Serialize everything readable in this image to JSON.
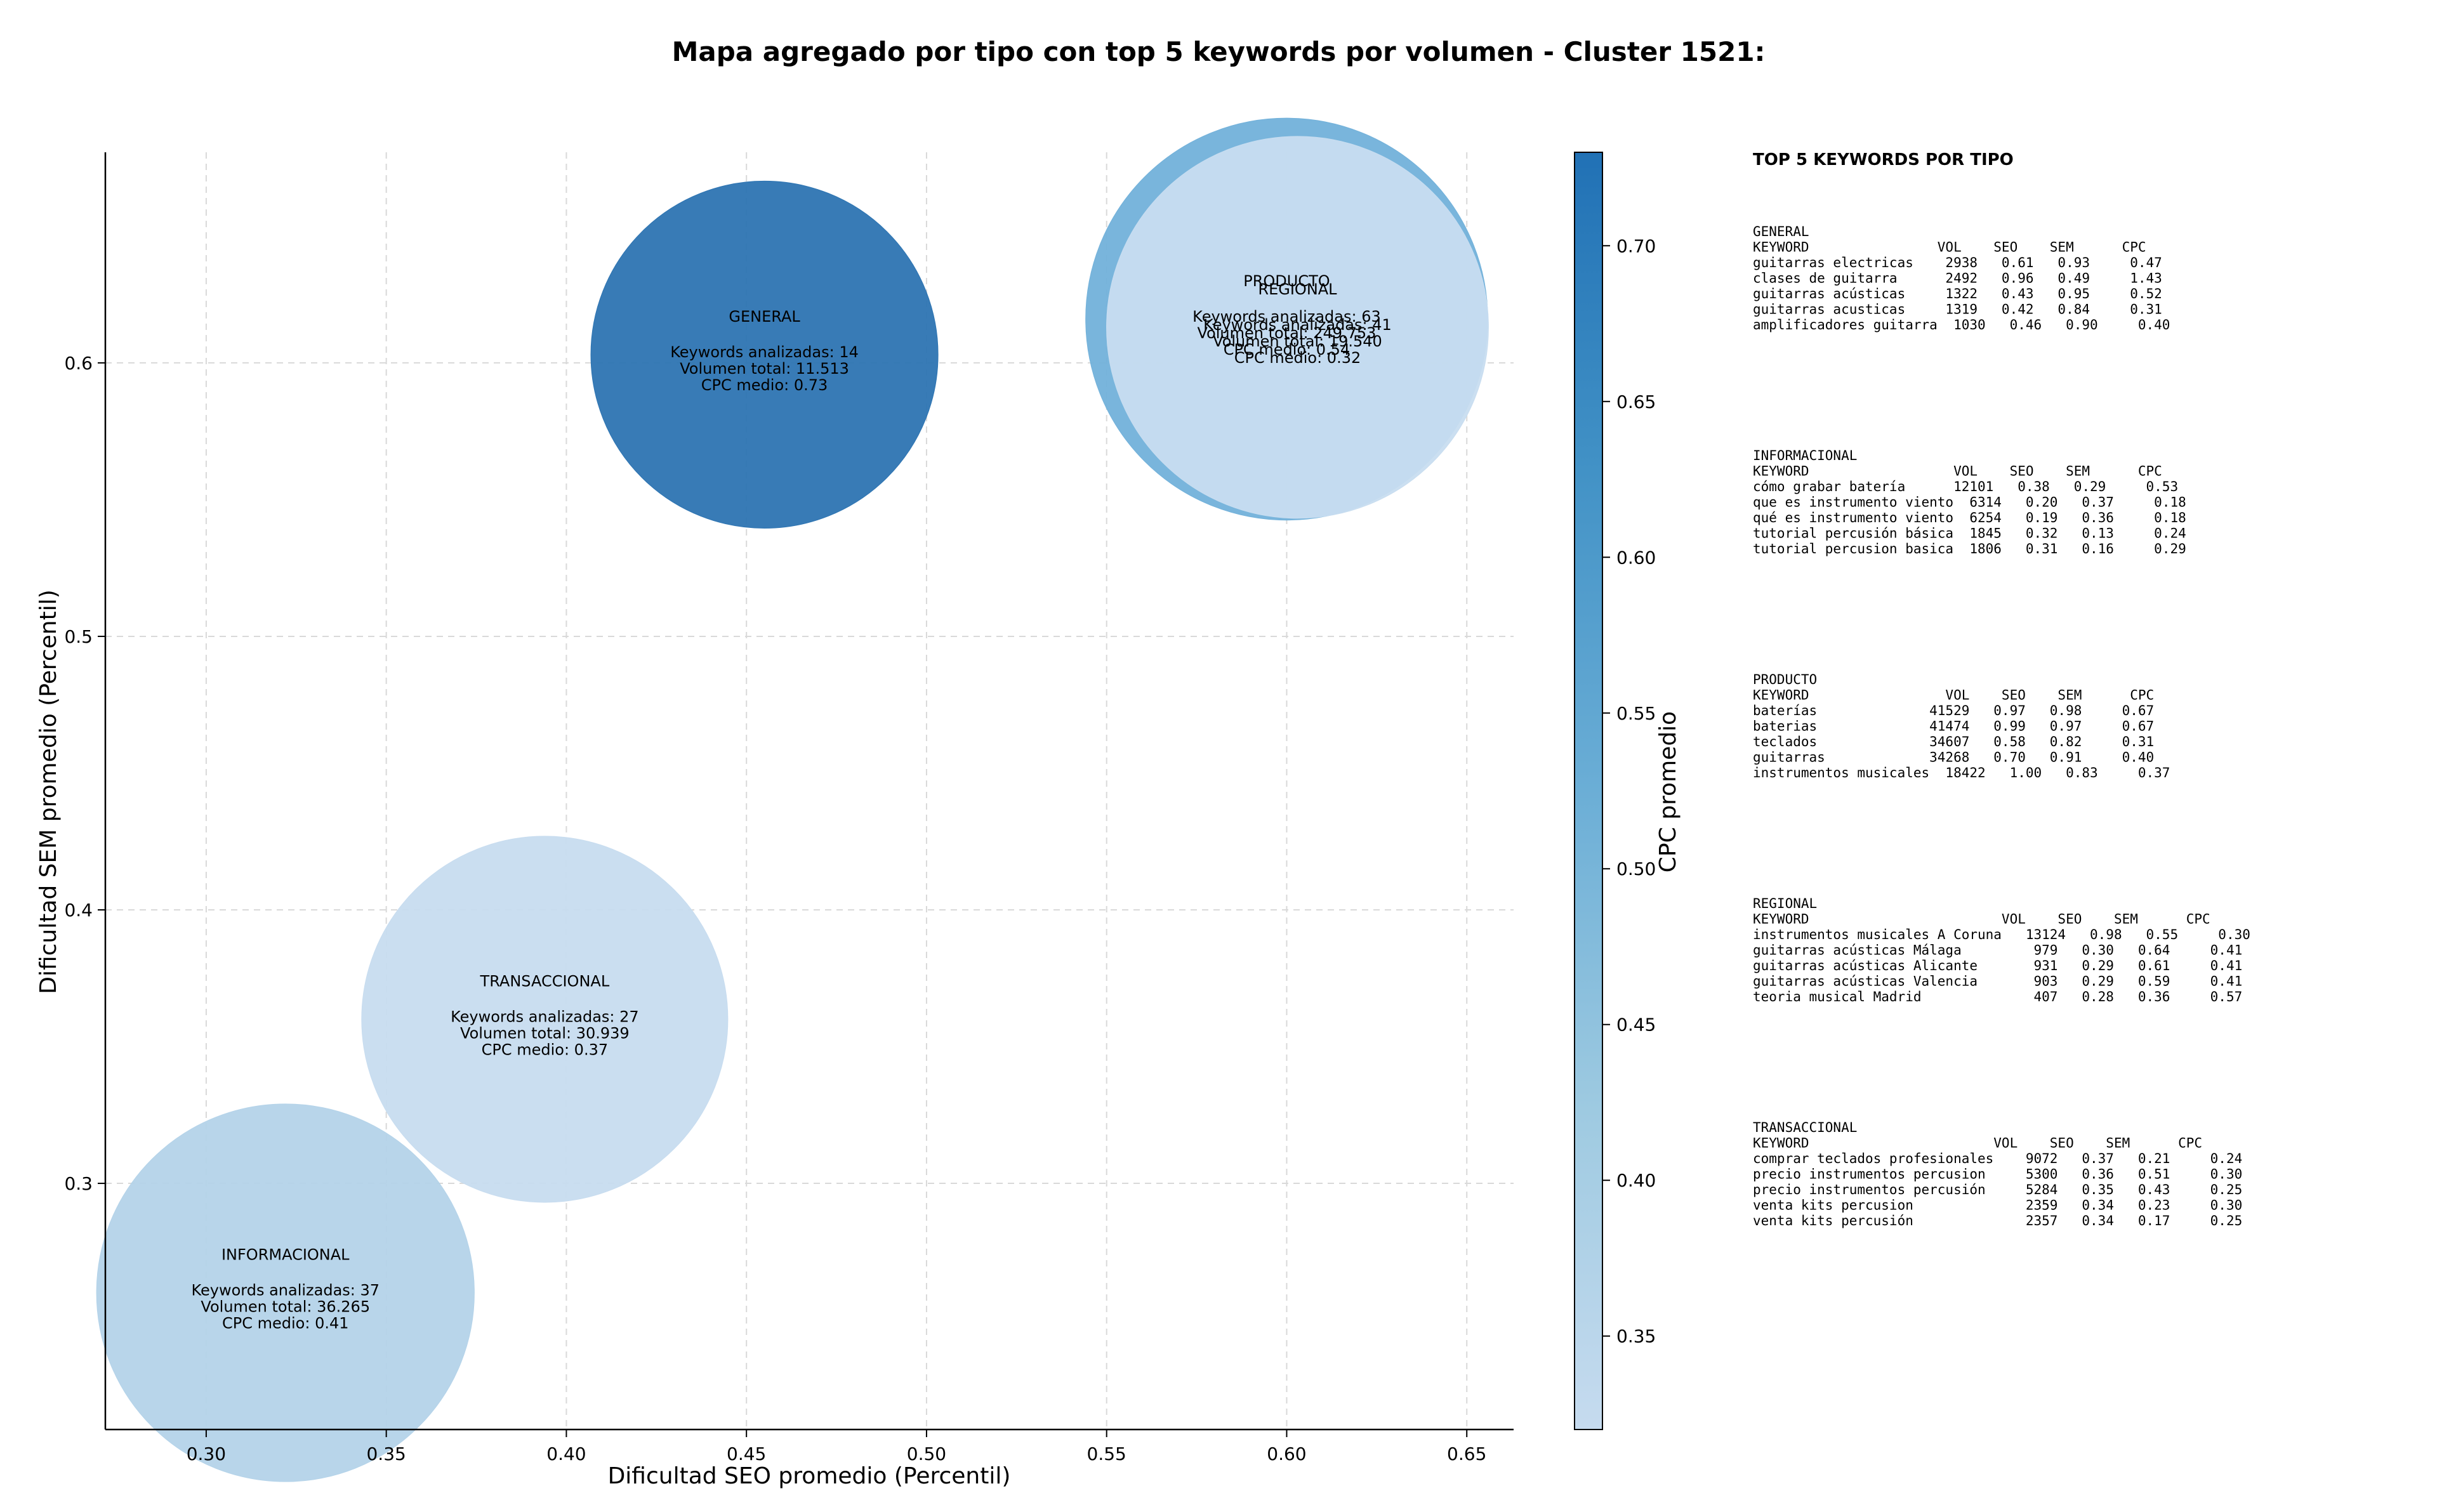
{
  "chart_data": {
    "type": "scatter",
    "title": "Mapa agregado por tipo con top 5 keywords por volumen - Cluster 1521:",
    "xlabel": "Dificultad SEO promedio (Percentil)",
    "ylabel": "Dificultad SEM promedio (Percentil)",
    "xlim": [
      0.272,
      0.663
    ],
    "ylim": [
      0.21,
      0.677
    ],
    "xticks": [
      "0.30",
      "0.35",
      "0.40",
      "0.45",
      "0.50",
      "0.55",
      "0.60",
      "0.65"
    ],
    "yticks": [
      "0.3",
      "0.4",
      "0.5",
      "0.6"
    ],
    "grid": true,
    "colorbar": {
      "label": "CPC promedio",
      "range": [
        0.32,
        0.73
      ],
      "ticks": [
        "0.35",
        "0.40",
        "0.45",
        "0.50",
        "0.55",
        "0.60",
        "0.65",
        "0.70"
      ],
      "colors": [
        "#c6dbef",
        "#9ecae1",
        "#6baed6",
        "#4292c6",
        "#2171b5"
      ]
    },
    "points": [
      {
        "tipo": "INFORMACIONAL",
        "x": 0.322,
        "y": 0.26,
        "keywords": "Keywords analizadas: 37",
        "volumen": "Volumen total: 36.265",
        "cpc_label": "CPC medio: 0.41",
        "cpc": 0.41,
        "color": "#b4d3e9"
      },
      {
        "tipo": "TRANSACCIONAL",
        "x": 0.394,
        "y": 0.36,
        "keywords": "Keywords analizadas: 27",
        "volumen": "Volumen total: 30.939",
        "cpc_label": "CPC medio: 0.37",
        "cpc": 0.37,
        "color": "#c7dcef"
      },
      {
        "tipo": "GENERAL",
        "x": 0.455,
        "y": 0.603,
        "keywords": "Keywords analizadas: 14",
        "volumen": "Volumen total: 11.513",
        "cpc_label": "CPC medio: 0.73",
        "cpc": 0.73,
        "color": "#2d74b2"
      },
      {
        "tipo": "PRODUCTO",
        "x": 0.6,
        "y": 0.616,
        "keywords": "Keywords analizadas: 63",
        "volumen": "Volumen total: 249.753",
        "cpc_label": "CPC medio: 0.54",
        "cpc": 0.54,
        "color": "#72b1da"
      },
      {
        "tipo": "REGIONAL",
        "x": 0.603,
        "y": 0.613,
        "keywords": "Keywords analizadas: 41",
        "volumen": "Volumen total: 19.540",
        "cpc_label": "CPC medio: 0.32",
        "cpc": 0.32,
        "color": "#c8ddf0"
      }
    ]
  },
  "side_panel": {
    "title": "TOP 5 KEYWORDS POR TIPO",
    "blocks": [
      {
        "name": "GENERAL",
        "header": "KEYWORD                VOL    SEO    SEM      CPC",
        "rows": [
          "guitarras electricas    2938   0.61   0.93     0.47",
          "clases de guitarra      2492   0.96   0.49     1.43",
          "guitarras acústicas     1322   0.43   0.95     0.52",
          "guitarras acusticas     1319   0.42   0.84     0.31",
          "amplificadores guitarra  1030   0.46   0.90     0.40"
        ]
      },
      {
        "name": "INFORMACIONAL",
        "header": "KEYWORD                  VOL    SEO    SEM      CPC",
        "rows": [
          "cómo grabar batería      12101   0.38   0.29     0.53",
          "que es instrumento viento  6314   0.20   0.37     0.18",
          "qué es instrumento viento  6254   0.19   0.36     0.18",
          "tutorial percusión básica  1845   0.32   0.13     0.24",
          "tutorial percusion basica  1806   0.31   0.16     0.29"
        ]
      },
      {
        "name": "PRODUCTO",
        "header": "KEYWORD                 VOL    SEO    SEM      CPC",
        "rows": [
          "baterías              41529   0.97   0.98     0.67",
          "baterias              41474   0.99   0.97     0.67",
          "teclados              34607   0.58   0.82     0.31",
          "guitarras             34268   0.70   0.91     0.40",
          "instrumentos musicales  18422   1.00   0.83     0.37"
        ]
      },
      {
        "name": "REGIONAL",
        "header": "KEYWORD                        VOL    SEO    SEM      CPC",
        "rows": [
          "instrumentos musicales A Coruna   13124   0.98   0.55     0.30",
          "guitarras acústicas Málaga         979   0.30   0.64     0.41",
          "guitarras acústicas Alicante       931   0.29   0.61     0.41",
          "guitarras acústicas Valencia       903   0.29   0.59     0.41",
          "teoria musical Madrid              407   0.28   0.36     0.57"
        ]
      },
      {
        "name": "TRANSACCIONAL",
        "header": "KEYWORD                       VOL    SEO    SEM      CPC",
        "rows": [
          "comprar teclados profesionales    9072   0.37   0.21     0.24",
          "precio instrumentos percusion     5300   0.36   0.51     0.30",
          "precio instrumentos percusión     5284   0.35   0.43     0.25",
          "venta kits percusion              2359   0.34   0.23     0.30",
          "venta kits percusión              2357   0.34   0.17     0.25"
        ]
      }
    ]
  }
}
